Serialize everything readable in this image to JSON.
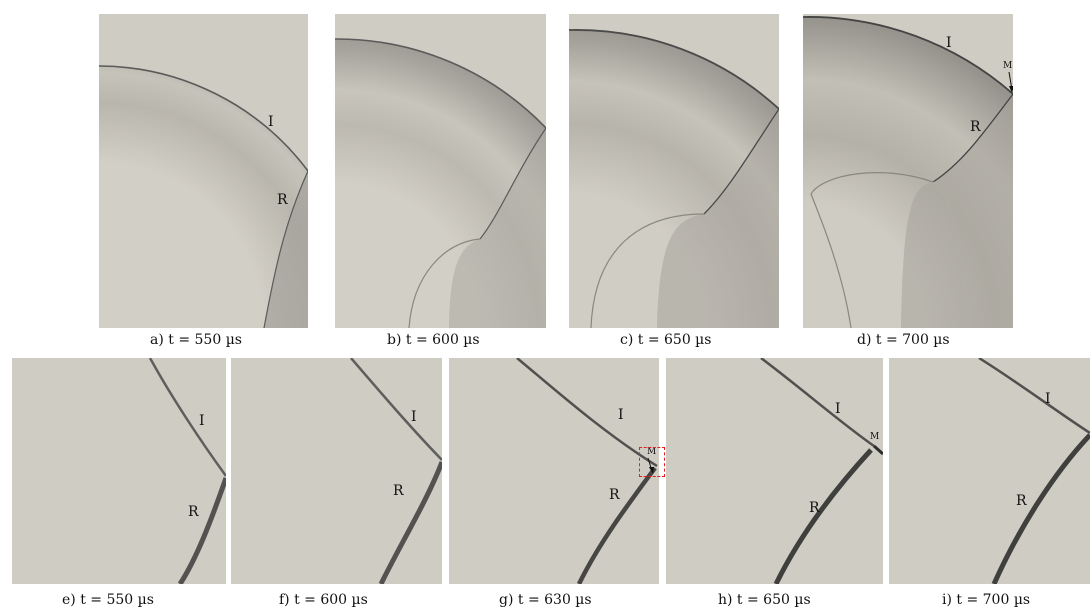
{
  "wave_labels": {
    "incident": "I",
    "reflected": "R",
    "mach_stem": "M"
  },
  "top_row": [
    {
      "id": "a",
      "caption": "a) t = 550 µs"
    },
    {
      "id": "b",
      "caption": "b) t = 600 µs"
    },
    {
      "id": "c",
      "caption": "c) t = 650 µs"
    },
    {
      "id": "d",
      "caption": "d) t = 700 µs"
    }
  ],
  "bottom_row": [
    {
      "id": "e",
      "caption": "e) t = 550 µs"
    },
    {
      "id": "f",
      "caption": "f) t = 600 µs"
    },
    {
      "id": "g",
      "caption": "g) t = 630 µs"
    },
    {
      "id": "h",
      "caption": "h) t = 650 µs"
    },
    {
      "id": "i",
      "caption": "i) t = 700 µs"
    }
  ],
  "colors": {
    "background": "#cfccc3",
    "shock": "#555555",
    "highlight_box": "#e02020"
  }
}
